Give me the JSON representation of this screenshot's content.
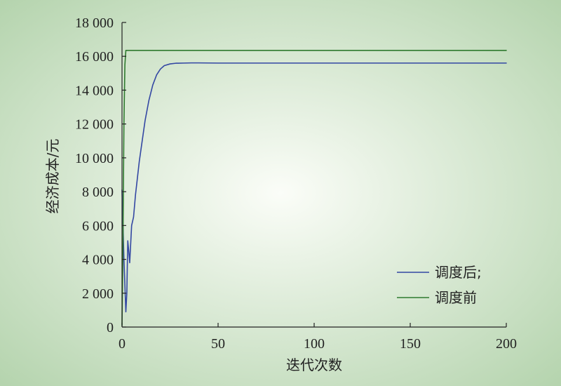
{
  "chart_data": {
    "type": "line",
    "title": "",
    "xlabel": "迭代次数",
    "ylabel": "经济成本/元",
    "xlim": [
      0,
      200
    ],
    "ylim": [
      0,
      18000
    ],
    "x_ticks": [
      0,
      50,
      100,
      150,
      200
    ],
    "x_tick_labels": [
      "0",
      "50",
      "100",
      "150",
      "200"
    ],
    "y_ticks": [
      0,
      2000,
      4000,
      6000,
      8000,
      10000,
      12000,
      14000,
      16000,
      18000
    ],
    "y_tick_labels": [
      "0",
      "2 000",
      "4 000",
      "6 000",
      "8 000",
      "10 000",
      "12 000",
      "14 000",
      "16 000",
      "18 000"
    ],
    "grid": false,
    "legend_position": "bottom-right",
    "background": {
      "center": "#fbfdf8",
      "edge": "#b5d4ae"
    },
    "series": [
      {
        "name": "调度后;",
        "color": "#3347a3",
        "x": [
          0,
          1,
          2,
          2.5,
          3,
          3.5,
          4,
          5,
          6,
          7,
          8,
          9,
          10,
          12,
          14,
          16,
          18,
          20,
          22,
          25,
          28,
          32,
          36,
          40,
          50,
          60,
          80,
          100,
          150,
          200
        ],
        "y": [
          8100,
          4000,
          900,
          2000,
          5100,
          4500,
          3800,
          6000,
          6500,
          7800,
          8800,
          9800,
          10600,
          12200,
          13400,
          14300,
          14900,
          15250,
          15450,
          15550,
          15590,
          15600,
          15610,
          15610,
          15600,
          15600,
          15600,
          15600,
          15600,
          15600
        ]
      },
      {
        "name": "调度前",
        "color": "#2f7a2f",
        "x": [
          0,
          0.5,
          1,
          1.5,
          2,
          3,
          50,
          100,
          150,
          200
        ],
        "y": [
          100,
          5000,
          12000,
          15500,
          16350,
          16350,
          16350,
          16350,
          16350,
          16350
        ]
      }
    ]
  }
}
